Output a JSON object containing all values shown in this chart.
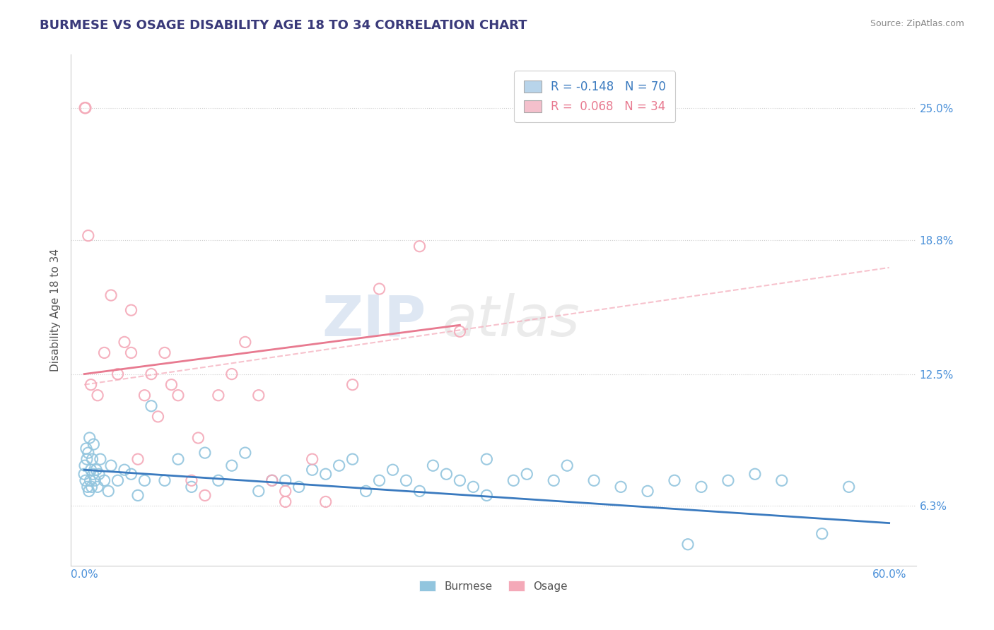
{
  "title": "BURMESE VS OSAGE DISABILITY AGE 18 TO 34 CORRELATION CHART",
  "source_text": "Source: ZipAtlas.com",
  "ylabel": "Disability Age 18 to 34",
  "watermark": "ZIPatlas",
  "y_tick_labels": [
    "6.3%",
    "12.5%",
    "18.8%",
    "25.0%"
  ],
  "y_tick_positions": [
    6.3,
    12.5,
    18.8,
    25.0
  ],
  "burmese_color": "#92c5de",
  "osage_color": "#f4a9b8",
  "burmese_line_color": "#3a7abf",
  "osage_line_color": "#e87a90",
  "osage_dashed_color": "#f4a9b8",
  "legend_burmese_label": "R = -0.148   N = 70",
  "legend_osage_label": "R =  0.068   N = 34",
  "R_burmese": -0.148,
  "N_burmese": 70,
  "R_osage": 0.068,
  "N_osage": 34,
  "burmese_scatter_x": [
    0.0,
    0.05,
    0.1,
    0.15,
    0.2,
    0.25,
    0.3,
    0.35,
    0.4,
    0.45,
    0.5,
    0.55,
    0.6,
    0.65,
    0.7,
    0.8,
    0.9,
    1.0,
    1.1,
    1.2,
    1.5,
    1.8,
    2.0,
    2.5,
    3.0,
    3.5,
    4.0,
    4.5,
    5.0,
    6.0,
    7.0,
    8.0,
    9.0,
    10.0,
    11.0,
    12.0,
    13.0,
    14.0,
    15.0,
    16.0,
    17.0,
    18.0,
    19.0,
    20.0,
    21.0,
    22.0,
    23.0,
    24.0,
    25.0,
    26.0,
    27.0,
    28.0,
    29.0,
    30.0,
    32.0,
    33.0,
    35.0,
    36.0,
    38.0,
    40.0,
    42.0,
    44.0,
    46.0,
    48.0,
    50.0,
    52.0,
    55.0,
    57.0,
    30.0,
    45.0
  ],
  "burmese_scatter_y": [
    7.8,
    8.2,
    7.5,
    9.0,
    8.5,
    7.2,
    8.8,
    7.0,
    9.5,
    7.5,
    8.0,
    7.2,
    8.5,
    7.8,
    9.2,
    7.5,
    8.0,
    7.2,
    7.8,
    8.5,
    7.5,
    7.0,
    8.2,
    7.5,
    8.0,
    7.8,
    6.8,
    7.5,
    11.0,
    7.5,
    8.5,
    7.2,
    8.8,
    7.5,
    8.2,
    8.8,
    7.0,
    7.5,
    7.5,
    7.2,
    8.0,
    7.8,
    8.2,
    8.5,
    7.0,
    7.5,
    8.0,
    7.5,
    7.0,
    8.2,
    7.8,
    7.5,
    7.2,
    8.5,
    7.5,
    7.8,
    7.5,
    8.2,
    7.5,
    7.2,
    7.0,
    7.5,
    7.2,
    7.5,
    7.8,
    7.5,
    5.0,
    7.2,
    6.8,
    4.5
  ],
  "osage_scatter_x": [
    0.05,
    0.1,
    0.3,
    0.5,
    1.0,
    1.5,
    2.0,
    2.5,
    3.0,
    3.5,
    4.0,
    4.5,
    5.0,
    5.5,
    6.0,
    7.0,
    8.0,
    9.0,
    10.0,
    11.0,
    12.0,
    13.0,
    15.0,
    17.0,
    20.0,
    22.0,
    25.0,
    28.0,
    14.0,
    6.5,
    3.5,
    8.5,
    15.0,
    18.0
  ],
  "osage_scatter_y": [
    25.0,
    25.0,
    19.0,
    12.0,
    11.5,
    13.5,
    16.2,
    12.5,
    14.0,
    13.5,
    8.5,
    11.5,
    12.5,
    10.5,
    13.5,
    11.5,
    7.5,
    6.8,
    11.5,
    12.5,
    14.0,
    11.5,
    6.5,
    8.5,
    12.0,
    16.5,
    18.5,
    14.5,
    7.5,
    12.0,
    15.5,
    9.5,
    7.0,
    6.5
  ],
  "xlim": [
    -1.0,
    62.0
  ],
  "ylim": [
    3.5,
    27.5
  ],
  "burmese_trend_start_x": 0.0,
  "burmese_trend_end_x": 60.0,
  "burmese_trend_start_y": 8.0,
  "burmese_trend_end_y": 5.5,
  "osage_solid_start_x": 0.0,
  "osage_solid_end_x": 28.0,
  "osage_solid_start_y": 12.5,
  "osage_solid_end_y": 14.8,
  "osage_dashed_start_x": 0.0,
  "osage_dashed_end_x": 60.0,
  "osage_dashed_start_y": 12.0,
  "osage_dashed_end_y": 17.5,
  "background_color": "#ffffff",
  "plot_bg_color": "#ffffff",
  "grid_color": "#d0d0d0",
  "title_color": "#3a3a7a",
  "title_fontsize": 13,
  "axis_label_color": "#555555",
  "tick_label_color": "#4a90d9",
  "source_color": "#888888",
  "source_fontsize": 9,
  "legend_box_color_burmese": "#b8d4ea",
  "legend_box_color_osage": "#f4c0cc",
  "legend_text_color_burmese": "#3a7abf",
  "legend_text_color_osage": "#e87a90"
}
